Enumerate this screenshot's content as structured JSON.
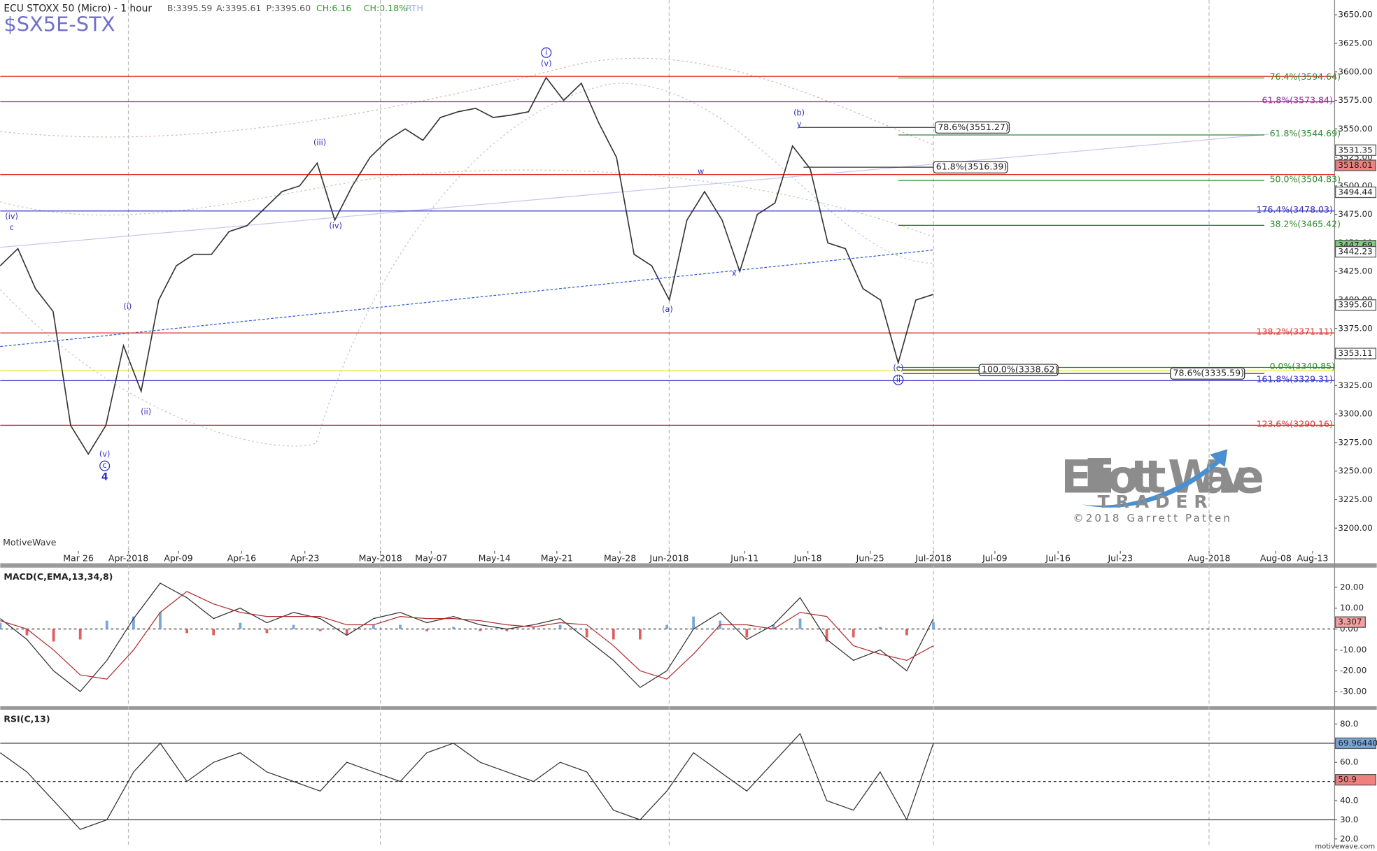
{
  "header": {
    "symbol": "ECU STOXX 50 (Micro) - 1 hour",
    "bid": "B:3395.59",
    "ask": "A:3395.61",
    "price": "P:3395.60",
    "change": "CH:6.16",
    "change_pct": "CH:0.18%",
    "session": "RTH",
    "ticker": "$SX5E-STX"
  },
  "branding": {
    "watermark_1": "Elliott",
    "watermark_2": "Wave",
    "watermark_3": "TRADER",
    "copyright": "©2018 Garrett Patten",
    "platform": "MotiveWave",
    "site": "motivewave.com"
  },
  "chart_data": [
    {
      "type": "line",
      "color": "#333333",
      "xtick_labels": [
        "Mar 26",
        "Apr-2018",
        "Apr-09",
        "Apr-16",
        "Apr-23",
        "May-2018",
        "May-07",
        "May-14",
        "May-21",
        "May-28",
        "Jun-2018",
        "Jun-11",
        "Jun-18",
        "Jun-25",
        "Jul-2018",
        "Jul-09",
        "Jul-16",
        "Jul-23",
        "Aug-2018",
        "Aug-08",
        "Aug-13"
      ],
      "values": [
        3430,
        3445,
        3410,
        3390,
        3290,
        3265,
        3290,
        3360,
        3320,
        3400,
        3430,
        3440,
        3440,
        3460,
        3465,
        3480,
        3495,
        3500,
        3520,
        3470,
        3500,
        3525,
        3540,
        3550,
        3540,
        3560,
        3565,
        3568,
        3560,
        3562,
        3565,
        3595,
        3575,
        3590,
        3555,
        3525,
        3440,
        3430,
        3400,
        3470,
        3495,
        3470,
        3425,
        3475,
        3485,
        3535,
        3515,
        3450,
        3445,
        3410,
        3400,
        3345,
        3400,
        3405
      ],
      "ylim": [
        3180,
        3663
      ],
      "yticks": [
        {
          "value": 3200,
          "label": "3200.00"
        },
        {
          "value": 3225,
          "label": "3225.00"
        },
        {
          "value": 3250,
          "label": "3250.00"
        },
        {
          "value": 3275,
          "label": "3275.00"
        },
        {
          "value": 3300,
          "label": "3300.00"
        },
        {
          "value": 3325,
          "label": "3325.00"
        },
        {
          "value": 3350,
          "label": "3350.00"
        },
        {
          "value": 3375,
          "label": "3375.00"
        },
        {
          "value": 3400,
          "label": "3400.00"
        },
        {
          "value": 3425,
          "label": "3425.00"
        },
        {
          "value": 3450,
          "label": "3450.00"
        },
        {
          "value": 3475,
          "label": "3475.00"
        },
        {
          "value": 3500,
          "label": "3500.00"
        },
        {
          "value": 3525,
          "label": "3525.00"
        },
        {
          "value": 3550,
          "label": "3550.00"
        },
        {
          "value": 3575,
          "label": "3575.00"
        },
        {
          "value": 3600,
          "label": "3600.00"
        },
        {
          "value": 3625,
          "label": "3625.00"
        },
        {
          "value": 3650,
          "label": "3650.00"
        }
      ],
      "levels": [
        {
          "label": "76.4%(3594.64)",
          "value": 3594.64,
          "color": "#2e8b2e"
        },
        {
          "label": "61.8%(3573.84)",
          "value": 3573.84,
          "color": "#a020a0"
        },
        {
          "label": "61.8%(3544.69)",
          "value": 3544.69,
          "color": "#2e8b2e"
        },
        {
          "label": "50.0%(3504.83)",
          "value": 3504.83,
          "color": "#2e8b2e"
        },
        {
          "label": "176.4%(3478.03)",
          "value": 3478.03,
          "color": "#3030c0"
        },
        {
          "label": "38.2%(3465.42)",
          "value": 3465.42,
          "color": "#2e8b2e"
        },
        {
          "label": "138.2%(3371.11)",
          "value": 3371.11,
          "color": "#e03030"
        },
        {
          "label": "0.0%(3340.85)",
          "value": 3340.85,
          "color": "#2e8b2e"
        },
        {
          "label": "161.8%(3329.31)",
          "value": 3329.31,
          "color": "#3030c0"
        },
        {
          "label": "123.6%(3290.16)",
          "value": 3290.16,
          "color": "#e03030"
        }
      ],
      "lines": [
        {
          "value": 3596,
          "color": "#e03030"
        },
        {
          "value": 3510,
          "color": "#e03030"
        },
        {
          "value": 3338,
          "color": "#f0e040"
        }
      ],
      "boxed_levels": [
        {
          "label": "78.6%(3551.27)",
          "value": 3551.27
        },
        {
          "label": "61.8%(3516.39)",
          "value": 3516.39
        },
        {
          "label": "100.0%(3338.62)",
          "value": 3338.62
        },
        {
          "label": "78.6%(3335.59)",
          "value": 3335.59
        }
      ],
      "price_markers": [
        {
          "value": 3531.35,
          "color": "#ffffff"
        },
        {
          "value": 3518.01,
          "color": "#f08080"
        },
        {
          "value": 3494.44,
          "color": "#ffffff"
        },
        {
          "value": 3447.69,
          "color": "#7ccd7c"
        },
        {
          "value": 3442.23,
          "color": "#ffffff"
        },
        {
          "value": 3395.6,
          "label": "3395.60",
          "color": "#ffffff"
        },
        {
          "value": 3353.11,
          "color": "#ffffff"
        }
      ],
      "wave_labels": [
        "(iv)",
        "c",
        "(v)",
        "c",
        "4",
        "(i)",
        "(ii)",
        "(iii)",
        "(iv)",
        "i",
        "(v)",
        "(a)",
        "w",
        "x",
        "(b)",
        "y",
        "(c)",
        "ii"
      ]
    },
    {
      "type": "macd",
      "title": "MACD(C,EMA,13,34,8)",
      "series": [
        {
          "color": "#333333",
          "values": [
            5,
            -5,
            -20,
            -30,
            -15,
            5,
            22,
            15,
            5,
            10,
            3,
            8,
            5,
            -3,
            5,
            8,
            3,
            6,
            2,
            0,
            2,
            5,
            -5,
            -15,
            -28,
            -20,
            0,
            8,
            -5,
            2,
            15,
            -5,
            -15,
            -10,
            -20,
            5
          ]
        },
        {
          "color": "#b03030",
          "values": [
            4,
            0,
            -10,
            -22,
            -24,
            -10,
            8,
            18,
            12,
            8,
            6,
            6,
            6,
            2,
            2,
            6,
            5,
            5,
            4,
            2,
            1,
            3,
            2,
            -8,
            -20,
            -24,
            -12,
            2,
            2,
            0,
            8,
            6,
            -8,
            -12,
            -15,
            -8
          ]
        }
      ],
      "histogram": {
        "pos_color": "#7aa6d6",
        "neg_color": "#e06060",
        "marker_color": "#f3a0a0",
        "values": [
          3,
          -3,
          -6,
          -5,
          4,
          6,
          8,
          -2,
          -3,
          3,
          -2,
          2,
          -1,
          -3,
          2,
          2,
          -1,
          1,
          -1,
          -1,
          1,
          2,
          -4,
          -5,
          -5,
          2,
          6,
          4,
          -4,
          2,
          5,
          -6,
          -4,
          1,
          -3,
          3.307
        ]
      },
      "ylim": [
        -37,
        29
      ],
      "yticks": [
        {
          "value": 20,
          "label": "20.00"
        },
        {
          "value": 10,
          "label": "10.00"
        },
        {
          "value": 0,
          "label": "0.00"
        },
        {
          "value": -10,
          "label": "-10.00"
        },
        {
          "value": -20,
          "label": "-20.00"
        },
        {
          "value": -30,
          "label": "-30.00"
        }
      ]
    },
    {
      "type": "rsi",
      "title": "RSI(C,13)",
      "color": "#333333",
      "values": [
        65,
        55,
        40,
        25,
        30,
        55,
        70,
        50,
        60,
        65,
        55,
        50,
        45,
        60,
        55,
        50,
        65,
        70,
        60,
        55,
        50,
        60,
        55,
        35,
        30,
        45,
        65,
        55,
        45,
        60,
        75,
        40,
        35,
        55,
        30,
        69.9644
      ],
      "ylim": [
        16,
        87
      ],
      "yticks": [
        {
          "value": 80,
          "label": "80.0"
        },
        {
          "value": 70,
          "label": "70.0"
        },
        {
          "value": 60,
          "label": "60.0"
        },
        {
          "value": 50,
          "label": "50.0"
        },
        {
          "value": 40,
          "label": "40.0"
        },
        {
          "value": 30,
          "label": "30.0"
        },
        {
          "value": 20,
          "label": "20.0"
        }
      ],
      "levels": [
        70,
        50,
        30
      ],
      "markers": [
        {
          "value": 69.9644,
          "label": "69.96440",
          "color": "#7aa6d6"
        },
        {
          "value": 50.9,
          "color": "#f08080"
        }
      ]
    }
  ]
}
